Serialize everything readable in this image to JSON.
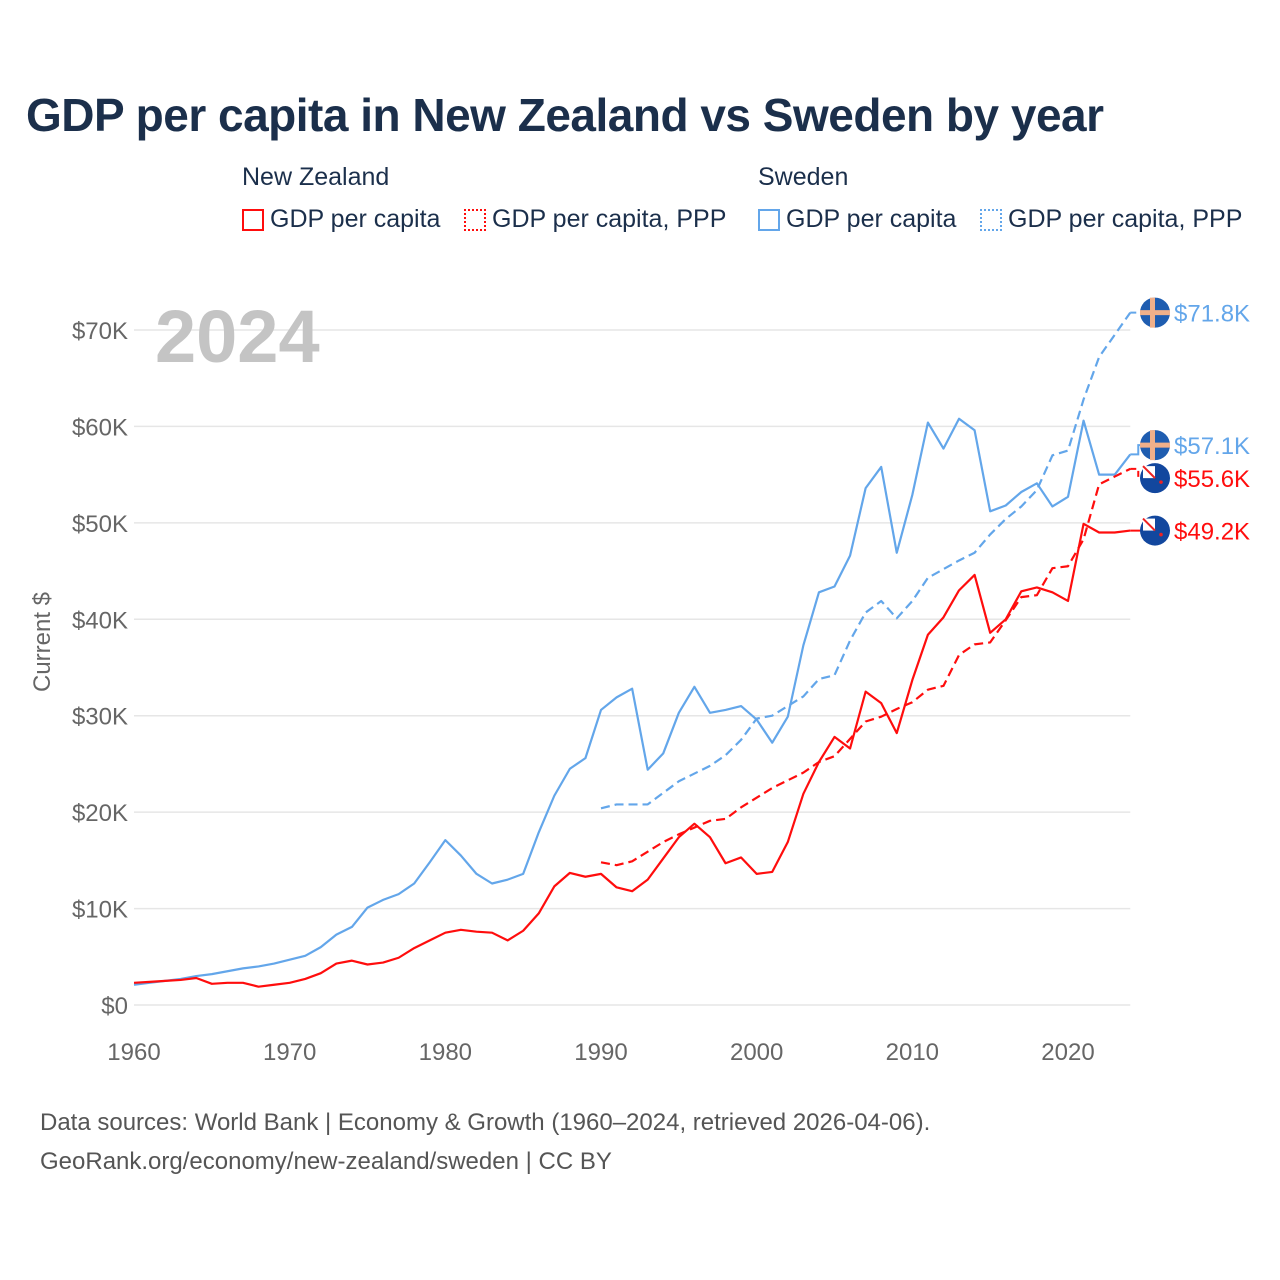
{
  "colors": {
    "nz": "#ff0d0d",
    "se": "#63a6ea",
    "grid": "#e6e6e6",
    "axis_text": "#666666",
    "year_watermark": "#c4c4c4"
  },
  "legend": {
    "groups": [
      {
        "name": "New Zealand",
        "items": [
          "GDP per capita",
          "GDP per capita, PPP"
        ]
      },
      {
        "name": "Sweden",
        "items": [
          "GDP per capita",
          "GDP per capita, PPP"
        ]
      }
    ]
  },
  "footer": {
    "line1": "Data sources: World Bank | Economy & Growth (1960–2024, retrieved 2026-04-06).",
    "line2": "GeoRank.org/economy/new-zealand/sweden | CC BY"
  },
  "chart_data": {
    "type": "line",
    "title": "GDP per capita in New Zealand vs Sweden by year",
    "year_label": "2024",
    "xlabel": "",
    "ylabel": "Current $",
    "xlim": [
      1960,
      2024
    ],
    "ylim": [
      0,
      72000
    ],
    "x_ticks": [
      1960,
      1970,
      1980,
      1990,
      2000,
      2010,
      2020
    ],
    "y_ticks": [
      {
        "v": 0,
        "label": "$0"
      },
      {
        "v": 10000,
        "label": "$10K"
      },
      {
        "v": 20000,
        "label": "$20K"
      },
      {
        "v": 30000,
        "label": "$30K"
      },
      {
        "v": 40000,
        "label": "$40K"
      },
      {
        "v": 50000,
        "label": "$50K"
      },
      {
        "v": 60000,
        "label": "$60K"
      },
      {
        "v": 70000,
        "label": "$70K"
      }
    ],
    "grid": true,
    "legend_position": "top",
    "series": [
      {
        "name": "Sweden GDP per capita, PPP",
        "country": "se",
        "dashed": true,
        "start": 1990,
        "end_label": "$71.8K",
        "values_k": [
          20.4,
          20.8,
          20.8,
          20.8,
          22.0,
          23.2,
          24.0,
          24.8,
          25.9,
          27.5,
          29.7,
          30.0,
          31.0,
          32.0,
          33.8,
          34.2,
          37.8,
          40.7,
          41.9,
          40.1,
          41.9,
          44.3,
          45.2,
          46.1,
          46.9,
          48.8,
          50.4,
          51.7,
          53.4,
          57.0,
          57.5,
          62.8,
          67.2,
          69.5,
          71.8
        ]
      },
      {
        "name": "Sweden GDP per capita",
        "country": "se",
        "dashed": false,
        "start": 1960,
        "end_label": "$57.1K",
        "values_k": [
          2.1,
          2.3,
          2.5,
          2.7,
          3.0,
          3.2,
          3.5,
          3.8,
          4.0,
          4.3,
          4.7,
          5.1,
          6.0,
          7.3,
          8.1,
          10.1,
          10.9,
          11.5,
          12.6,
          14.8,
          17.1,
          15.5,
          13.6,
          12.6,
          13.0,
          13.6,
          17.9,
          21.7,
          24.5,
          25.6,
          30.6,
          31.9,
          32.8,
          24.4,
          26.1,
          30.3,
          33.0,
          30.3,
          30.6,
          31.0,
          29.6,
          27.2,
          29.9,
          37.3,
          42.8,
          43.4,
          46.6,
          53.6,
          55.8,
          46.9,
          52.9,
          60.4,
          57.7,
          60.8,
          59.6,
          51.2,
          51.8,
          53.2,
          54.1,
          51.7,
          52.7,
          60.6,
          55.0,
          55.0,
          57.1
        ]
      },
      {
        "name": "New Zealand GDP per capita, PPP",
        "country": "nz",
        "dashed": true,
        "start": 1990,
        "end_label": "$55.6K",
        "values_k": [
          14.8,
          14.5,
          14.9,
          15.9,
          16.9,
          17.7,
          18.4,
          19.1,
          19.3,
          20.5,
          21.5,
          22.5,
          23.3,
          24.1,
          25.2,
          25.8,
          27.6,
          29.4,
          29.9,
          30.7,
          31.4,
          32.7,
          33.1,
          36.3,
          37.4,
          37.6,
          39.9,
          42.3,
          42.5,
          45.3,
          45.5,
          48.3,
          54.0,
          54.8,
          55.6
        ]
      },
      {
        "name": "New Zealand GDP per capita",
        "country": "nz",
        "dashed": false,
        "start": 1960,
        "end_label": "$49.2K",
        "values_k": [
          2.3,
          2.4,
          2.5,
          2.6,
          2.8,
          2.2,
          2.3,
          2.3,
          1.9,
          2.1,
          2.3,
          2.7,
          3.3,
          4.3,
          4.6,
          4.2,
          4.4,
          4.9,
          5.9,
          6.7,
          7.5,
          7.8,
          7.6,
          7.5,
          6.7,
          7.7,
          9.5,
          12.3,
          13.7,
          13.3,
          13.6,
          12.2,
          11.8,
          13.0,
          15.2,
          17.4,
          18.8,
          17.4,
          14.7,
          15.3,
          13.6,
          13.8,
          16.9,
          21.9,
          25.2,
          27.8,
          26.6,
          32.5,
          31.3,
          28.2,
          33.7,
          38.4,
          40.2,
          43.0,
          44.6,
          38.6,
          40.0,
          42.9,
          43.3,
          42.8,
          41.9,
          49.9,
          49.0,
          49.0,
          49.2
        ]
      }
    ]
  }
}
